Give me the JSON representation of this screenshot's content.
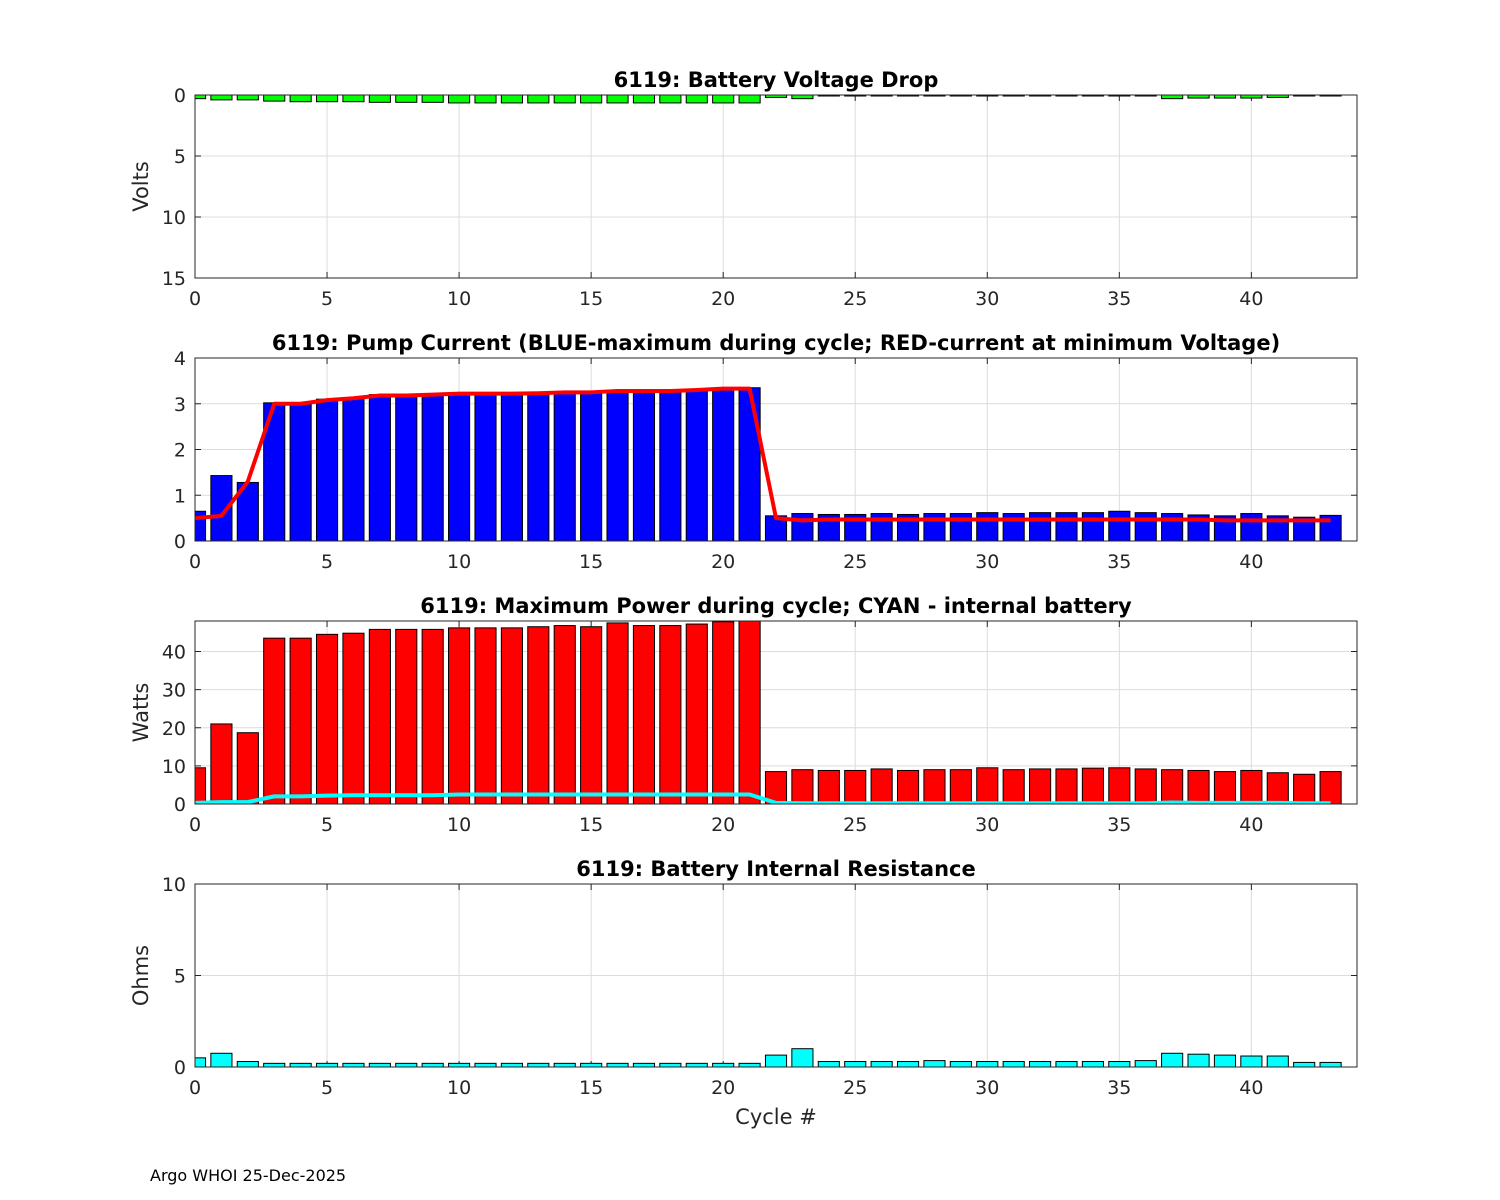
{
  "footer": "Argo WHOI 25-Dec-2025",
  "colors": {
    "voltage": "#00ff00",
    "current_max": "#0000ff",
    "current_min_v": "#ff0000",
    "power": "#ff0000",
    "internal": "#00ffff",
    "resistance": "#00ffff",
    "grid": "#dcdcdc"
  },
  "chart_data": [
    {
      "type": "bar",
      "title": "6119: Battery Voltage Drop",
      "xlabel": "",
      "ylabel": "Volts",
      "xlim": [
        0,
        44
      ],
      "ylim": [
        0,
        15
      ],
      "y_reversed": true,
      "xticks": [
        "0",
        "5",
        "10",
        "15",
        "20",
        "25",
        "30",
        "35",
        "40"
      ],
      "yticks": [
        "0",
        "5",
        "10",
        "15"
      ],
      "grid": true,
      "x": [
        0,
        1,
        2,
        3,
        4,
        5,
        6,
        7,
        8,
        9,
        10,
        11,
        12,
        13,
        14,
        15,
        16,
        17,
        18,
        19,
        20,
        21,
        22,
        23,
        24,
        25,
        26,
        27,
        28,
        29,
        30,
        31,
        32,
        33,
        34,
        35,
        36,
        37,
        38,
        39,
        40,
        41,
        42,
        43
      ],
      "series": [
        {
          "values": [
            0.3,
            0.4,
            0.4,
            0.5,
            0.55,
            0.55,
            0.55,
            0.6,
            0.6,
            0.6,
            0.65,
            0.65,
            0.65,
            0.65,
            0.65,
            0.65,
            0.65,
            0.65,
            0.65,
            0.65,
            0.65,
            0.65,
            0.2,
            0.3,
            0.05,
            0.05,
            0.05,
            0.05,
            0.05,
            0.05,
            0.05,
            0.05,
            0.05,
            0.05,
            0.05,
            0.05,
            0.05,
            0.3,
            0.25,
            0.25,
            0.25,
            0.2,
            0.05,
            0.05
          ]
        }
      ]
    },
    {
      "type": "bar",
      "title": "6119: Pump Current (BLUE-maximum during cycle; RED-current at minimum Voltage)",
      "xlabel": "",
      "ylabel": "",
      "xlim": [
        0,
        44
      ],
      "ylim": [
        0,
        4
      ],
      "xticks": [
        "0",
        "5",
        "10",
        "15",
        "20",
        "25",
        "30",
        "35",
        "40"
      ],
      "yticks": [
        "0",
        "1",
        "2",
        "3",
        "4"
      ],
      "grid": true,
      "x": [
        0,
        1,
        2,
        3,
        4,
        5,
        6,
        7,
        8,
        9,
        10,
        11,
        12,
        13,
        14,
        15,
        16,
        17,
        18,
        19,
        20,
        21,
        22,
        23,
        24,
        25,
        26,
        27,
        28,
        29,
        30,
        31,
        32,
        33,
        34,
        35,
        36,
        37,
        38,
        39,
        40,
        41,
        42,
        43
      ],
      "series": [
        {
          "kind": "bar",
          "values": [
            0.65,
            1.43,
            1.28,
            3.02,
            3.02,
            3.1,
            3.12,
            3.2,
            3.2,
            3.2,
            3.23,
            3.23,
            3.23,
            3.23,
            3.25,
            3.26,
            3.3,
            3.28,
            3.28,
            3.3,
            3.33,
            3.35,
            0.55,
            0.6,
            0.58,
            0.58,
            0.6,
            0.58,
            0.6,
            0.6,
            0.62,
            0.6,
            0.62,
            0.62,
            0.62,
            0.65,
            0.62,
            0.6,
            0.57,
            0.55,
            0.6,
            0.55,
            0.52,
            0.56
          ]
        },
        {
          "kind": "line",
          "values": [
            0.5,
            0.55,
            1.3,
            3.0,
            3.0,
            3.08,
            3.12,
            3.18,
            3.18,
            3.2,
            3.22,
            3.22,
            3.22,
            3.23,
            3.25,
            3.25,
            3.28,
            3.28,
            3.28,
            3.3,
            3.33,
            3.33,
            0.5,
            0.45,
            0.47,
            0.47,
            0.47,
            0.47,
            0.47,
            0.47,
            0.47,
            0.47,
            0.47,
            0.47,
            0.47,
            0.47,
            0.47,
            0.47,
            0.47,
            0.45,
            0.45,
            0.45,
            0.45,
            0.45
          ]
        }
      ]
    },
    {
      "type": "bar",
      "title": "6119: Maximum Power during cycle; CYAN - internal battery",
      "xlabel": "",
      "ylabel": "Watts",
      "xlim": [
        0,
        44
      ],
      "ylim": [
        0,
        48
      ],
      "xticks": [
        "0",
        "5",
        "10",
        "15",
        "20",
        "25",
        "30",
        "35",
        "40"
      ],
      "yticks": [
        "0",
        "10",
        "20",
        "30",
        "40"
      ],
      "ytick_values": [
        0,
        10,
        20,
        30,
        40
      ],
      "grid": true,
      "x": [
        0,
        1,
        2,
        3,
        4,
        5,
        6,
        7,
        8,
        9,
        10,
        11,
        12,
        13,
        14,
        15,
        16,
        17,
        18,
        19,
        20,
        21,
        22,
        23,
        24,
        25,
        26,
        27,
        28,
        29,
        30,
        31,
        32,
        33,
        34,
        35,
        36,
        37,
        38,
        39,
        40,
        41,
        42,
        43
      ],
      "series": [
        {
          "kind": "bar",
          "values": [
            9.5,
            21,
            18.7,
            43.5,
            43.5,
            44.5,
            44.8,
            45.8,
            45.8,
            45.8,
            46.2,
            46.2,
            46.2,
            46.5,
            46.8,
            46.5,
            47.5,
            46.8,
            46.8,
            47.2,
            47.8,
            48,
            8.5,
            9,
            8.8,
            8.8,
            9.2,
            8.8,
            9,
            9,
            9.5,
            9,
            9.2,
            9.2,
            9.4,
            9.5,
            9.2,
            9,
            8.8,
            8.5,
            8.8,
            8.2,
            7.8,
            8.5
          ]
        },
        {
          "kind": "line",
          "values": [
            0.3,
            0.5,
            0.5,
            2.0,
            2.0,
            2.2,
            2.3,
            2.3,
            2.3,
            2.3,
            2.5,
            2.5,
            2.5,
            2.5,
            2.5,
            2.5,
            2.5,
            2.5,
            2.5,
            2.5,
            2.5,
            2.5,
            0.3,
            0.2,
            0.2,
            0.2,
            0.2,
            0.2,
            0.2,
            0.2,
            0.2,
            0.2,
            0.2,
            0.2,
            0.2,
            0.2,
            0.2,
            0.4,
            0.3,
            0.3,
            0.3,
            0.3,
            0.2,
            0.2
          ]
        }
      ]
    },
    {
      "type": "bar",
      "title": "6119: Battery Internal Resistance",
      "xlabel": "Cycle #",
      "ylabel": "Ohms",
      "xlim": [
        0,
        44
      ],
      "ylim": [
        0,
        10
      ],
      "xticks": [
        "0",
        "5",
        "10",
        "15",
        "20",
        "25",
        "30",
        "35",
        "40"
      ],
      "yticks": [
        "0",
        "5",
        "10"
      ],
      "grid": true,
      "x": [
        0,
        1,
        2,
        3,
        4,
        5,
        6,
        7,
        8,
        9,
        10,
        11,
        12,
        13,
        14,
        15,
        16,
        17,
        18,
        19,
        20,
        21,
        22,
        23,
        24,
        25,
        26,
        27,
        28,
        29,
        30,
        31,
        32,
        33,
        34,
        35,
        36,
        37,
        38,
        39,
        40,
        41,
        42,
        43
      ],
      "series": [
        {
          "values": [
            0.5,
            0.75,
            0.3,
            0.2,
            0.2,
            0.2,
            0.2,
            0.2,
            0.2,
            0.2,
            0.2,
            0.2,
            0.2,
            0.2,
            0.2,
            0.2,
            0.2,
            0.2,
            0.2,
            0.2,
            0.2,
            0.2,
            0.65,
            1.0,
            0.3,
            0.3,
            0.3,
            0.3,
            0.35,
            0.3,
            0.3,
            0.3,
            0.3,
            0.3,
            0.3,
            0.3,
            0.35,
            0.75,
            0.7,
            0.65,
            0.6,
            0.6,
            0.25,
            0.25
          ]
        }
      ]
    }
  ]
}
